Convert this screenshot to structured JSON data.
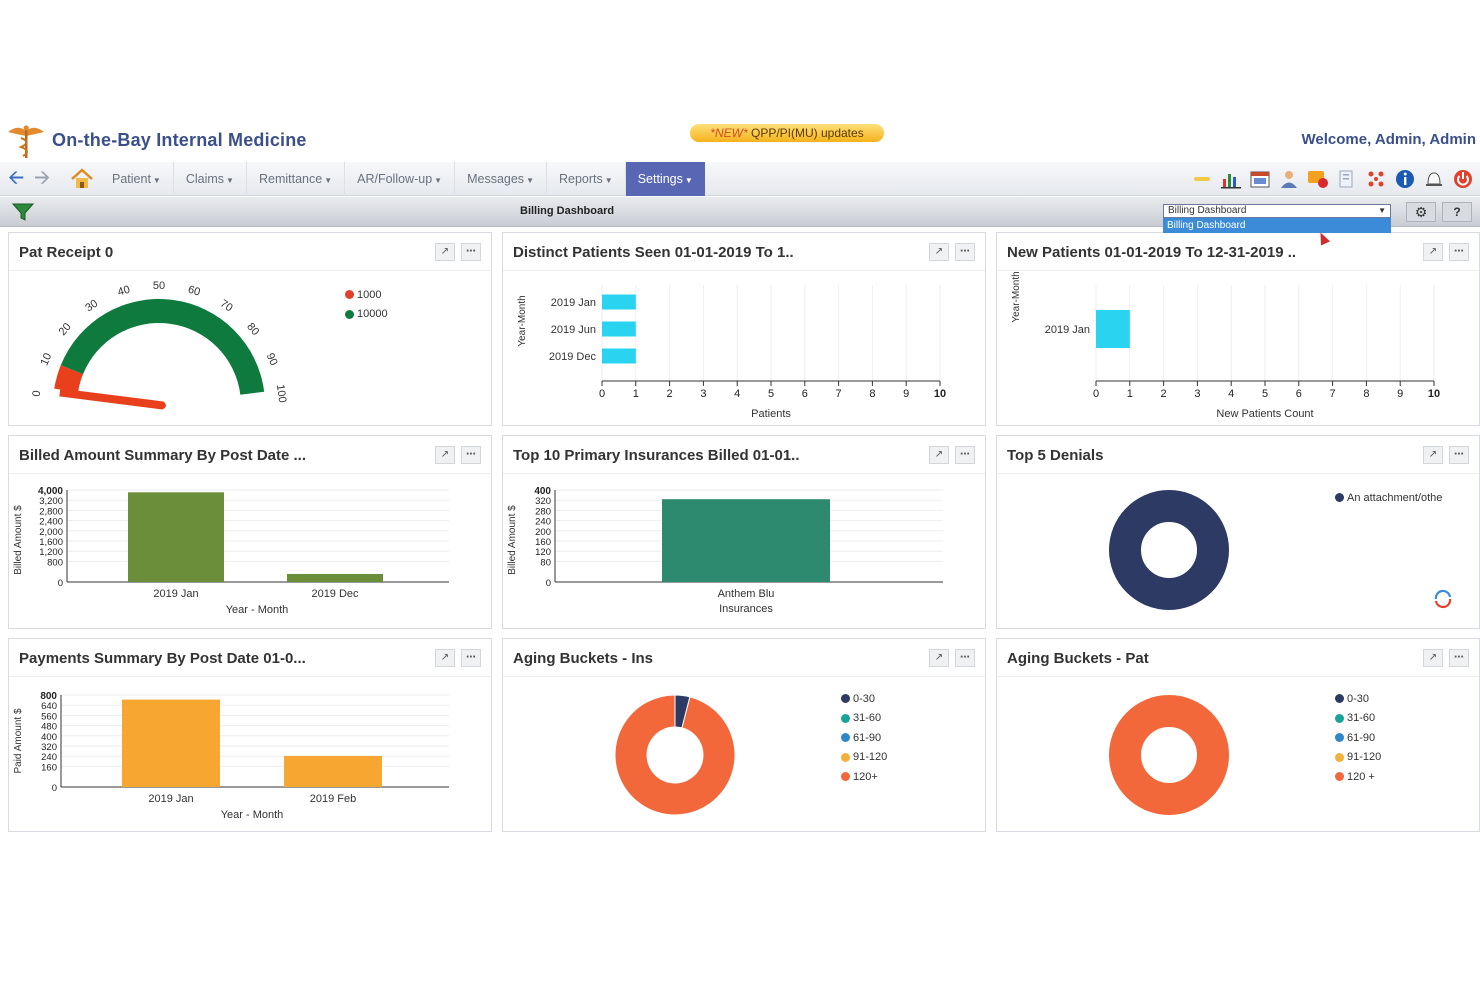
{
  "app": {
    "title": "On-the-Bay Internal Medicine",
    "banner_new": "*NEW*",
    "banner_text": "QPP/PI(MU) updates",
    "welcome": "Welcome, Admin, Admin"
  },
  "nav": {
    "items": [
      {
        "label": "Patient"
      },
      {
        "label": "Claims"
      },
      {
        "label": "Remittance"
      },
      {
        "label": "AR/Follow-up"
      },
      {
        "label": "Messages"
      },
      {
        "label": "Reports"
      },
      {
        "label": "Settings"
      }
    ],
    "active": "Settings",
    "toolbar_icons": [
      "key-icon",
      "bar-chart-icon",
      "calendar-icon",
      "user-icon",
      "alerts-icon",
      "documents-icon",
      "apps-grid-icon",
      "info-icon",
      "bell-icon",
      "power-icon"
    ]
  },
  "subbar": {
    "dashboard_title": "Billing Dashboard",
    "select_value": "Billing Dashboard",
    "select_option": "Billing Dashboard",
    "help_label": "?"
  },
  "colors": {
    "accent_nav": "#5867b4",
    "gauge_green": "#0e7a3e",
    "gauge_red": "#e8401c",
    "bar_cyan": "#2ad3f0",
    "bar_olive": "#6b8e3a",
    "bar_teal": "#2e8a6e",
    "bar_orange": "#f6a631",
    "navy": "#2d3a64",
    "teal": "#1aa39a",
    "blue": "#2f86c9",
    "amber": "#f2b23a",
    "coral": "#f2683a"
  },
  "widgets": {
    "pat_receipt": {
      "title": "Pat Receipt 0",
      "chart_data": {
        "type": "gauge",
        "value": 0,
        "ticks": [
          "0",
          "10",
          "20",
          "30",
          "40",
          "50",
          "60",
          "70",
          "80",
          "90",
          "100"
        ],
        "legend": [
          "1000",
          "10000"
        ]
      }
    },
    "distinct_patients": {
      "title": "Distinct Patients Seen 01-01-2019 To 1..",
      "chart_data": {
        "type": "bar",
        "orientation": "horizontal",
        "categories": [
          "2019 Jan",
          "2019 Jun",
          "2019 Dec"
        ],
        "values": [
          1,
          1,
          1
        ],
        "xlabel": "Patients",
        "ylabel": "Year-Month",
        "xlim": [
          0,
          10
        ],
        "xticks": [
          "0",
          "1",
          "2",
          "3",
          "4",
          "5",
          "6",
          "7",
          "8",
          "9",
          "10"
        ]
      }
    },
    "new_patients": {
      "title": "New Patients 01-01-2019 To 12-31-2019 ..",
      "chart_data": {
        "type": "bar",
        "orientation": "horizontal",
        "categories": [
          "2019 Jan"
        ],
        "values": [
          1
        ],
        "xlabel": "New Patients Count",
        "ylabel": "Year-Month",
        "xlim": [
          0,
          10
        ],
        "xticks": [
          "0",
          "1",
          "2",
          "3",
          "4",
          "5",
          "6",
          "7",
          "8",
          "9",
          "10"
        ]
      }
    },
    "billed_amount": {
      "title": "Billed Amount Summary By Post Date ...",
      "chart_data": {
        "type": "bar",
        "categories": [
          "2019 Jan",
          "2019 Dec"
        ],
        "values": [
          3900,
          350
        ],
        "xlabel": "Year - Month",
        "ylabel": "Billed Amount $",
        "ylim": [
          0,
          4000
        ],
        "yticks": [
          "4,000",
          "3,200",
          "2,800",
          "2,400",
          "2,000",
          "1,600",
          "1,200",
          "800",
          "0"
        ]
      }
    },
    "top_insurances": {
      "title": "Top 10 Primary Insurances Billed 01-01..",
      "chart_data": {
        "type": "bar",
        "categories": [
          "Anthem Blu Insurances"
        ],
        "category_lines": [
          "Anthem Blu",
          "Insurances"
        ],
        "values": [
          360
        ],
        "ylabel": "Billed Amount $",
        "ylim": [
          0,
          400
        ],
        "yticks": [
          "400",
          "320",
          "280",
          "240",
          "200",
          "160",
          "120",
          "80",
          "0"
        ]
      }
    },
    "top_denials": {
      "title": "Top 5 Denials",
      "chart_data": {
        "type": "pie",
        "donut": true,
        "labels": [
          "An attachment/othe"
        ],
        "values": [
          100
        ]
      }
    },
    "payments_summary": {
      "title": "Payments Summary By Post Date 01-0...",
      "chart_data": {
        "type": "bar",
        "categories": [
          "2019 Jan",
          "2019 Feb"
        ],
        "values": [
          760,
          270
        ],
        "xlabel": "Year - Month",
        "ylabel": "Paid Amount $",
        "ylim": [
          0,
          800
        ],
        "yticks": [
          "800",
          "640",
          "560",
          "480",
          "400",
          "320",
          "240",
          "160",
          "0"
        ]
      }
    },
    "aging_ins": {
      "title": "Aging Buckets - Ins",
      "chart_data": {
        "type": "pie",
        "donut": true,
        "labels": [
          "0-30",
          "31-60",
          "61-90",
          "91-120",
          "120+"
        ],
        "values": [
          4,
          0,
          0,
          0,
          96
        ]
      }
    },
    "aging_pat": {
      "title": "Aging Buckets - Pat",
      "chart_data": {
        "type": "pie",
        "donut": true,
        "labels": [
          "0-30",
          "31-60",
          "61-90",
          "91-120",
          "120 +"
        ],
        "values": [
          0,
          0,
          0,
          0,
          100
        ]
      }
    }
  }
}
